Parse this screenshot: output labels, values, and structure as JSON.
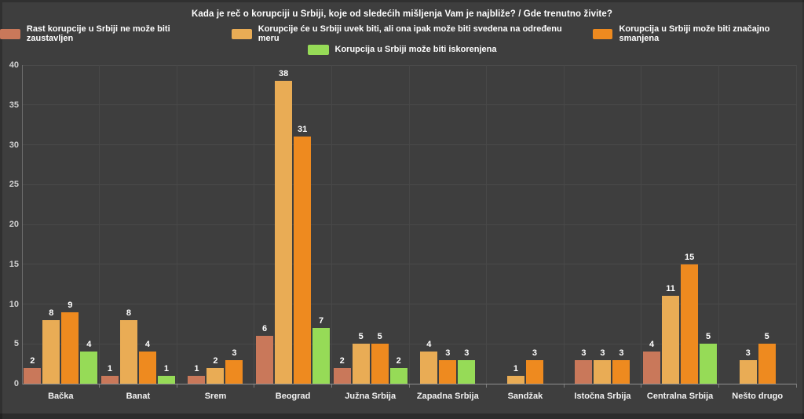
{
  "chart_data": {
    "type": "bar",
    "title": "Kada je reč o korupciji u Srbiji, koje od sledećih mišljenja Vam je najbliže? / Gde trenutno živite?",
    "categories": [
      "Bačka",
      "Banat",
      "Srem",
      "Beograd",
      "Južna Srbija",
      "Zapadna Srbija",
      "Sandžak",
      "Istočna Srbija",
      "Centralna Srbija",
      "Nešto drugo"
    ],
    "series": [
      {
        "name": "Rast korupcije u Srbiji ne može biti zaustavljen",
        "color": "#c9785a",
        "values": [
          2,
          1,
          1,
          6,
          2,
          null,
          null,
          3,
          4,
          null
        ]
      },
      {
        "name": "Korupcije će u Srbiji uvek biti, ali ona ipak može biti svedena na određenu meru",
        "color": "#e9ac55",
        "values": [
          8,
          8,
          2,
          38,
          5,
          4,
          1,
          3,
          11,
          3
        ]
      },
      {
        "name": "Korupcija u Srbiji može biti značajno smanjena",
        "color": "#ee8a1f",
        "values": [
          9,
          4,
          3,
          31,
          5,
          3,
          3,
          3,
          15,
          5
        ]
      },
      {
        "name": "Korupcija u Srbiji može biti iskorenjena",
        "color": "#96db57",
        "values": [
          4,
          1,
          null,
          7,
          2,
          3,
          null,
          null,
          5,
          null
        ]
      }
    ],
    "ylim": [
      0,
      40
    ],
    "ytick_step": 5,
    "grid": true,
    "legend_position": "top",
    "legend_rows": [
      [
        0,
        1,
        2
      ],
      [
        3
      ]
    ],
    "value_labels": true
  },
  "theme": {
    "background": "#3e3e3e",
    "gridline": "#4a4a4a",
    "axis_line": "#8f8f8f",
    "text": "#ffffff",
    "tick_text": "#cfcfcf"
  }
}
